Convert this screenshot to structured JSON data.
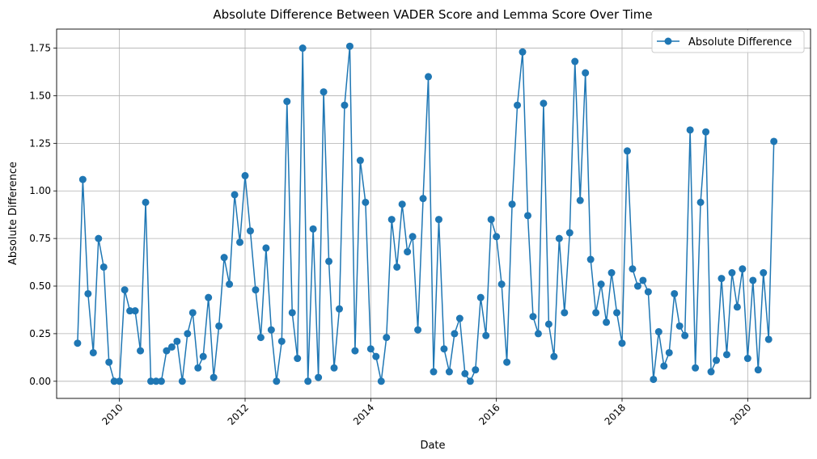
{
  "colors": {
    "series": "#1f77b4",
    "grid": "#b0b0b0",
    "axis": "#000000"
  },
  "chart_data": {
    "type": "line",
    "title": "Absolute Difference Between VADER Score and Lemma Score Over Time",
    "xlabel": "Date",
    "ylabel": "Absolute Difference",
    "xlim": [
      2009.0,
      2021.0
    ],
    "ylim": [
      -0.09,
      1.85
    ],
    "grid": true,
    "legend_position": "top-right",
    "x_ticks": [
      2010,
      2012,
      2014,
      2016,
      2018,
      2020
    ],
    "x_tick_labels": [
      "2010",
      "2012",
      "2014",
      "2016",
      "2018",
      "2020"
    ],
    "y_ticks": [
      0.0,
      0.25,
      0.5,
      0.75,
      1.0,
      1.25,
      1.5,
      1.75
    ],
    "y_tick_labels": [
      "0.00",
      "0.25",
      "0.50",
      "0.75",
      "1.00",
      "1.25",
      "1.50",
      "1.75"
    ],
    "series": [
      {
        "name": "Absolute Difference",
        "marker": "circle",
        "x": [
          "2009-05",
          "2009-06",
          "2009-07",
          "2009-08",
          "2009-09",
          "2009-10",
          "2009-11",
          "2009-12",
          "2010-01",
          "2010-02",
          "2010-03",
          "2010-04",
          "2010-05",
          "2010-06",
          "2010-07",
          "2010-08",
          "2010-09",
          "2010-10",
          "2010-11",
          "2010-12",
          "2011-01",
          "2011-02",
          "2011-03",
          "2011-04",
          "2011-05",
          "2011-06",
          "2011-07",
          "2011-08",
          "2011-09",
          "2011-10",
          "2011-11",
          "2011-12",
          "2012-01",
          "2012-02",
          "2012-03",
          "2012-04",
          "2012-05",
          "2012-06",
          "2012-07",
          "2012-08",
          "2012-09",
          "2012-10",
          "2012-11",
          "2012-12",
          "2013-01",
          "2013-02",
          "2013-03",
          "2013-04",
          "2013-05",
          "2013-06",
          "2013-07",
          "2013-08",
          "2013-09",
          "2013-10",
          "2013-11",
          "2013-12",
          "2014-01",
          "2014-02",
          "2014-03",
          "2014-04",
          "2014-05",
          "2014-06",
          "2014-07",
          "2014-08",
          "2014-09",
          "2014-10",
          "2014-11",
          "2014-12",
          "2015-01",
          "2015-02",
          "2015-03",
          "2015-04",
          "2015-05",
          "2015-06",
          "2015-07",
          "2015-08",
          "2015-09",
          "2015-10",
          "2015-11",
          "2015-12",
          "2016-01",
          "2016-02",
          "2016-03",
          "2016-04",
          "2016-05",
          "2016-06",
          "2016-07",
          "2016-08",
          "2016-09",
          "2016-10",
          "2016-11",
          "2016-12",
          "2017-01",
          "2017-02",
          "2017-03",
          "2017-04",
          "2017-05",
          "2017-06",
          "2017-07",
          "2017-08",
          "2017-09",
          "2017-10",
          "2017-11",
          "2017-12",
          "2018-01",
          "2018-02",
          "2018-03",
          "2018-04",
          "2018-05",
          "2018-06",
          "2018-07",
          "2018-08",
          "2018-09",
          "2018-10",
          "2018-11",
          "2018-12",
          "2019-01",
          "2019-02",
          "2019-03",
          "2019-04",
          "2019-05",
          "2019-06",
          "2019-07",
          "2019-08",
          "2019-09",
          "2019-10",
          "2019-11",
          "2019-12",
          "2020-01",
          "2020-02",
          "2020-03",
          "2020-04",
          "2020-05",
          "2020-06"
        ],
        "values": [
          0.2,
          1.06,
          0.46,
          0.15,
          0.75,
          0.6,
          0.1,
          0.0,
          0.0,
          0.48,
          0.37,
          0.37,
          0.16,
          0.94,
          0.0,
          0.0,
          0.0,
          0.16,
          0.18,
          0.21,
          0.0,
          0.25,
          0.36,
          0.07,
          0.13,
          0.44,
          0.02,
          0.29,
          0.65,
          0.51,
          0.98,
          0.73,
          1.08,
          0.79,
          0.48,
          0.23,
          0.7,
          0.27,
          0.0,
          0.21,
          1.47,
          0.36,
          0.12,
          1.75,
          0.0,
          0.8,
          0.02,
          1.52,
          0.63,
          0.07,
          0.38,
          1.45,
          1.76,
          0.16,
          1.16,
          0.94,
          0.17,
          0.13,
          0.0,
          0.23,
          0.85,
          0.6,
          0.93,
          0.68,
          0.76,
          0.27,
          0.96,
          1.6,
          0.05,
          0.85,
          0.17,
          0.05,
          0.25,
          0.33,
          0.04,
          0.0,
          0.06,
          0.44,
          0.24,
          0.85,
          0.76,
          0.51,
          0.1,
          0.93,
          1.45,
          1.73,
          0.87,
          0.34,
          0.25,
          1.46,
          0.3,
          0.13,
          0.75,
          0.36,
          0.78,
          1.68,
          0.95,
          1.62,
          0.64,
          0.36,
          0.51,
          0.31,
          0.57,
          0.36,
          0.2,
          1.21,
          0.59,
          0.5,
          0.53,
          0.47,
          0.01,
          0.26,
          0.08,
          0.15,
          0.46,
          0.29,
          0.24,
          1.32,
          0.07,
          0.94,
          1.31,
          0.05,
          0.11,
          0.54,
          0.14,
          0.57,
          0.39,
          0.59,
          0.12,
          0.53,
          0.06,
          0.57,
          0.22,
          1.26
        ]
      }
    ]
  }
}
